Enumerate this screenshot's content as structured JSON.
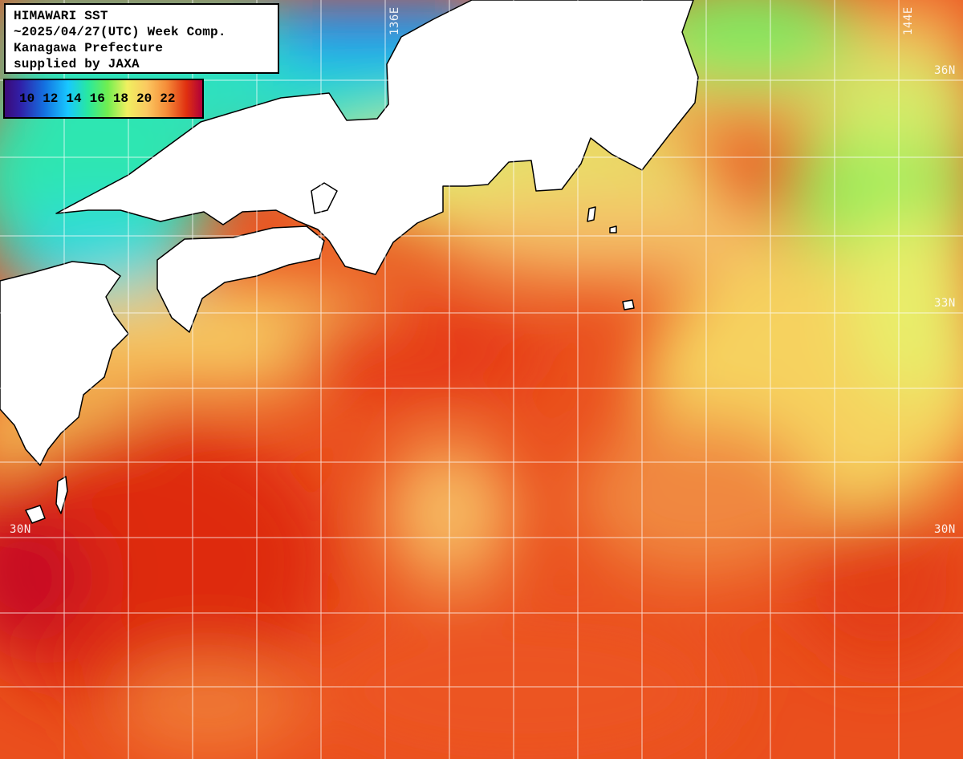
{
  "info": {
    "lines": [
      "HIMAWARI SST",
      "~2025/04/27(UTC) Week Comp.",
      "Kanagawa Prefecture",
      "supplied by JAXA"
    ]
  },
  "color_scale": {
    "labels": [
      "10",
      "12",
      "14",
      "16",
      "18",
      "20",
      "22"
    ],
    "colors": [
      "#3b0a78",
      "#1470e0",
      "#18c8ff",
      "#70ee50",
      "#f0f060",
      "#f58c38",
      "#e03010",
      "#b0003a"
    ]
  },
  "grid_labels": {
    "lon": [
      "136E",
      "144E"
    ],
    "lat_right": [
      "36N",
      "33N",
      "30N"
    ],
    "lat_left": [
      "30N"
    ]
  },
  "colors": {
    "land": "#ffffff",
    "grid": "#ffffff",
    "coast": "#000000"
  }
}
